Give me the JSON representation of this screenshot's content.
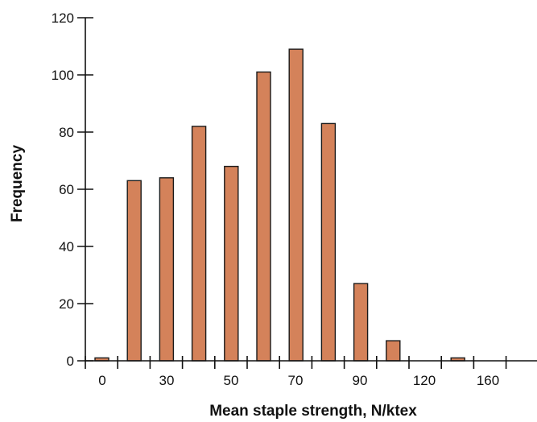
{
  "chart_data": {
    "type": "bar",
    "title": "",
    "xlabel": "Mean staple strength, N/ktex",
    "ylabel": "Frequency",
    "ylim": [
      0,
      120
    ],
    "yticks": [
      0,
      20,
      40,
      60,
      80,
      100,
      120
    ],
    "xtick_labels": [
      "0",
      "30",
      "50",
      "70",
      "90",
      "120",
      "160"
    ],
    "values": [
      1,
      63,
      64,
      82,
      68,
      101,
      109,
      83,
      27,
      7,
      0,
      1,
      0,
      0
    ],
    "bar_color": "#d4825a",
    "grid": false,
    "legend": "none"
  }
}
